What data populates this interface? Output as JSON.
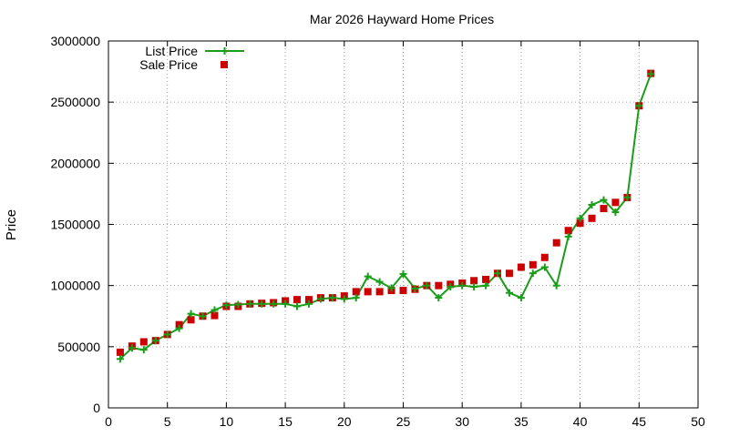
{
  "chart_data": {
    "type": "line",
    "title": "Mar 2026 Hayward Home Prices",
    "xlabel": "",
    "ylabel": "Price",
    "xlim": [
      0,
      50
    ],
    "ylim": [
      0,
      3000000
    ],
    "x_ticks": [
      0,
      5,
      10,
      15,
      20,
      25,
      30,
      35,
      40,
      45,
      50
    ],
    "y_ticks": [
      0,
      500000,
      1000000,
      1500000,
      2000000,
      2500000,
      3000000
    ],
    "grid": true,
    "legend_position": "top-left",
    "series": [
      {
        "name": "List Price",
        "style": "line-with-plus-markers",
        "color": "#1a9e1a",
        "points": [
          [
            1,
            400000
          ],
          [
            2,
            490000
          ],
          [
            3,
            475000
          ],
          [
            4,
            550000
          ],
          [
            5,
            600000
          ],
          [
            6,
            650000
          ],
          [
            7,
            770000
          ],
          [
            8,
            750000
          ],
          [
            9,
            800000
          ],
          [
            10,
            840000
          ],
          [
            11,
            845000
          ],
          [
            12,
            850000
          ],
          [
            13,
            850000
          ],
          [
            14,
            850000
          ],
          [
            15,
            850000
          ],
          [
            16,
            830000
          ],
          [
            17,
            850000
          ],
          [
            18,
            890000
          ],
          [
            19,
            900000
          ],
          [
            20,
            890000
          ],
          [
            21,
            900000
          ],
          [
            22,
            1075000
          ],
          [
            23,
            1030000
          ],
          [
            24,
            980000
          ],
          [
            25,
            1095000
          ],
          [
            26,
            975000
          ],
          [
            27,
            1000000
          ],
          [
            28,
            900000
          ],
          [
            29,
            990000
          ],
          [
            30,
            1000000
          ],
          [
            31,
            990000
          ],
          [
            32,
            1000000
          ],
          [
            33,
            1100000
          ],
          [
            34,
            940000
          ],
          [
            35,
            900000
          ],
          [
            36,
            1100000
          ],
          [
            37,
            1150000
          ],
          [
            38,
            1000000
          ],
          [
            39,
            1400000
          ],
          [
            40,
            1550000
          ],
          [
            41,
            1660000
          ],
          [
            42,
            1700000
          ],
          [
            43,
            1600000
          ],
          [
            44,
            1720000
          ],
          [
            45,
            2470000
          ],
          [
            46,
            2730000
          ]
        ]
      },
      {
        "name": "Sale Price",
        "style": "square-markers",
        "color": "#cc0000",
        "points": [
          [
            1,
            455000
          ],
          [
            2,
            505000
          ],
          [
            3,
            540000
          ],
          [
            4,
            550000
          ],
          [
            5,
            600000
          ],
          [
            6,
            680000
          ],
          [
            7,
            720000
          ],
          [
            8,
            750000
          ],
          [
            9,
            755000
          ],
          [
            10,
            830000
          ],
          [
            11,
            830000
          ],
          [
            12,
            850000
          ],
          [
            13,
            855000
          ],
          [
            14,
            860000
          ],
          [
            15,
            875000
          ],
          [
            16,
            885000
          ],
          [
            17,
            885000
          ],
          [
            18,
            900000
          ],
          [
            19,
            900000
          ],
          [
            20,
            915000
          ],
          [
            21,
            950000
          ],
          [
            22,
            950000
          ],
          [
            23,
            950000
          ],
          [
            24,
            960000
          ],
          [
            25,
            960000
          ],
          [
            26,
            970000
          ],
          [
            27,
            1000000
          ],
          [
            28,
            1000000
          ],
          [
            29,
            1010000
          ],
          [
            30,
            1020000
          ],
          [
            31,
            1040000
          ],
          [
            32,
            1050000
          ],
          [
            33,
            1100000
          ],
          [
            34,
            1100000
          ],
          [
            35,
            1150000
          ],
          [
            36,
            1170000
          ],
          [
            37,
            1230000
          ],
          [
            38,
            1350000
          ],
          [
            39,
            1450000
          ],
          [
            40,
            1510000
          ],
          [
            41,
            1550000
          ],
          [
            42,
            1630000
          ],
          [
            43,
            1680000
          ],
          [
            44,
            1720000
          ],
          [
            45,
            2470000
          ],
          [
            46,
            2735000
          ]
        ]
      }
    ]
  }
}
